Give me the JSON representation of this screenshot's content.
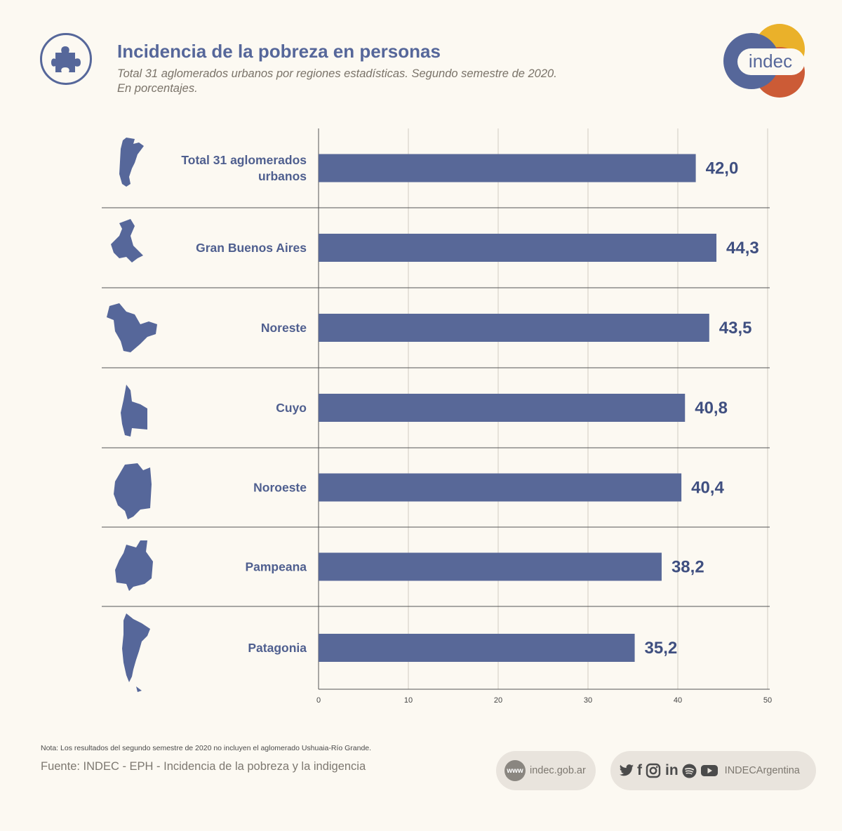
{
  "header": {
    "title": "Incidencia de la pobreza en personas",
    "subtitle_line1": "Total 31 aglomerados urbanos por regiones estadísticas. Segundo semestre de 2020.",
    "subtitle_line2": "En porcentajes.",
    "icon": "puzzle-piece-icon"
  },
  "logo": {
    "text": "indec"
  },
  "chart_data": {
    "type": "bar",
    "orientation": "horizontal",
    "categories": [
      "Total 31 aglomerados urbanos",
      "Gran Buenos Aires",
      "Noreste",
      "Cuyo",
      "Noroeste",
      "Pampeana",
      "Patagonia"
    ],
    "category_lines": [
      [
        "Total 31 aglomerados",
        "urbanos"
      ],
      [
        "Gran Buenos Aires"
      ],
      [
        "Noreste"
      ],
      [
        "Cuyo"
      ],
      [
        "Noroeste"
      ],
      [
        "Pampeana"
      ],
      [
        "Patagonia"
      ]
    ],
    "values": [
      42.0,
      44.3,
      43.5,
      40.8,
      40.4,
      38.2,
      35.2
    ],
    "value_labels": [
      "42,0",
      "44,3",
      "43,5",
      "40,8",
      "40,4",
      "38,2",
      "35,2"
    ],
    "xlim": [
      0,
      50
    ],
    "xticks": [
      0,
      10,
      20,
      30,
      40,
      50
    ],
    "xtick_labels": [
      "0",
      "10",
      "20",
      "30",
      "40",
      "50"
    ],
    "grid": true,
    "map_icons": [
      "argentina-map-icon",
      "gran-buenos-aires-map-icon",
      "noreste-map-icon",
      "cuyo-map-icon",
      "noroeste-map-icon",
      "pampeana-map-icon",
      "patagonia-map-icon"
    ]
  },
  "footer": {
    "note": "Nota: Los resultados del segundo semestre de 2020 no incluyen el aglomerado Ushuaia-Río Grande.",
    "source": "Fuente: INDEC - EPH - Incidencia de la pobreza y la indigencia",
    "web_badge": "www",
    "website": "indec.gob.ar",
    "social_handle": "INDECArgentina",
    "social_icons": [
      "twitter-icon",
      "facebook-icon",
      "instagram-icon",
      "linkedin-icon",
      "spotify-icon",
      "youtube-icon"
    ]
  },
  "colors": {
    "bar": "#586898",
    "title": "#56679a",
    "background": "#fcf9f2",
    "logo_yellow": "#eab12a",
    "logo_red": "#cc5b36",
    "logo_blue": "#56679a"
  }
}
